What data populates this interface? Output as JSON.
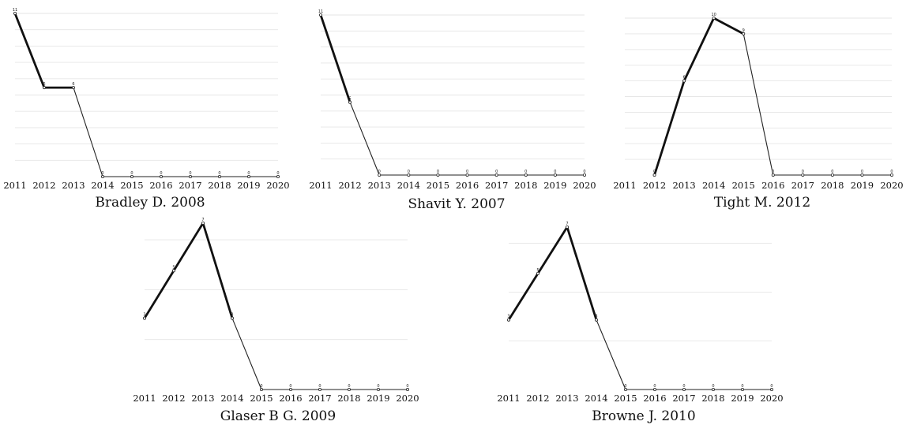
{
  "chart_data": [
    {
      "type": "line",
      "title": "Bradley D. 2008",
      "categories": [
        "2011",
        "2012",
        "2013",
        "2014",
        "2015",
        "2016",
        "2017",
        "2018",
        "2019",
        "2020"
      ],
      "values": [
        11,
        6,
        6,
        0,
        0,
        0,
        0,
        0,
        0,
        0
      ],
      "point_labels": [
        "11",
        "6",
        "6",
        "0",
        "0",
        "0",
        "0",
        "0",
        "0",
        "0"
      ],
      "burst": [
        [
          0,
          1
        ],
        [
          1,
          2
        ]
      ],
      "ylim": [
        0,
        11
      ],
      "grid": "horizontal",
      "colors": {
        "line": "#222222",
        "grid": "#e6e6e6"
      }
    },
    {
      "type": "line",
      "title": "Shavit Y. 2007",
      "categories": [
        "2011",
        "2012",
        "2013",
        "2014",
        "2015",
        "2016",
        "2017",
        "2018",
        "2019",
        "2020"
      ],
      "values": [
        11,
        5,
        0,
        0,
        0,
        0,
        0,
        0,
        0,
        0
      ],
      "point_labels": [
        "11",
        "5",
        "0",
        "0",
        "0",
        "0",
        "0",
        "0",
        "0",
        "0"
      ],
      "burst": [
        [
          0,
          1
        ]
      ],
      "ylim": [
        0,
        11
      ],
      "grid": "horizontal",
      "colors": {
        "line": "#222222",
        "grid": "#e6e6e6"
      }
    },
    {
      "type": "line",
      "title": "Tight M. 2012",
      "categories": [
        "2011",
        "2012",
        "2013",
        "2014",
        "2015",
        "2016",
        "2017",
        "2018",
        "2019",
        "2020"
      ],
      "values": [
        null,
        0,
        6,
        10,
        9,
        0,
        0,
        0,
        0,
        0
      ],
      "point_labels": [
        "",
        "0",
        "6",
        "10",
        "9",
        "0",
        "0",
        "0",
        "0",
        "0"
      ],
      "burst": [
        [
          1,
          2
        ],
        [
          2,
          3
        ],
        [
          3,
          4
        ]
      ],
      "ylim": [
        0,
        10
      ],
      "grid": "horizontal",
      "colors": {
        "line": "#222222",
        "grid": "#e6e6e6"
      }
    },
    {
      "type": "line",
      "title": "Glaser B G. 2009",
      "categories": [
        "2011",
        "2012",
        "2013",
        "2014",
        "2015",
        "2016",
        "2017",
        "2018",
        "2019",
        "2020"
      ],
      "values": [
        3,
        5,
        7,
        3,
        0,
        0,
        0,
        0,
        0,
        0
      ],
      "point_labels": [
        "3",
        "5",
        "7",
        "3",
        "0",
        "0",
        "0",
        "0",
        "0",
        "0"
      ],
      "burst": [
        [
          0,
          1
        ],
        [
          1,
          2
        ],
        [
          2,
          3
        ]
      ],
      "ylim": [
        0,
        7
      ],
      "grid": "horizontal",
      "colors": {
        "line": "#222222",
        "grid": "#e6e6e6"
      }
    },
    {
      "type": "line",
      "title": "Browne J. 2010",
      "categories": [
        "2011",
        "2012",
        "2013",
        "2014",
        "2015",
        "2016",
        "2017",
        "2018",
        "2019",
        "2020"
      ],
      "values": [
        3,
        5,
        7,
        3,
        0,
        0,
        0,
        0,
        0,
        0
      ],
      "point_labels": [
        "3",
        "5",
        "7",
        "3",
        "0",
        "0",
        "0",
        "0",
        "0",
        "0"
      ],
      "burst": [
        [
          0,
          1
        ],
        [
          1,
          2
        ],
        [
          2,
          3
        ]
      ],
      "ylim": [
        0,
        7
      ],
      "grid": "horizontal",
      "colors": {
        "line": "#222222",
        "grid": "#e6e6e6"
      }
    }
  ]
}
